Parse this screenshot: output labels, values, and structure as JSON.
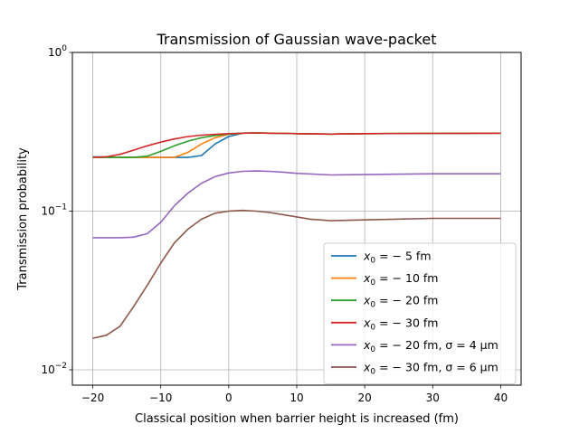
{
  "chart_data": {
    "type": "line",
    "title": "Transmission of Gaussian wave-packet",
    "xlabel": "Classical position when barrier height is increased (fm)",
    "ylabel": "Transmission probability",
    "xlim": [
      -23,
      43
    ],
    "ylim": [
      0.008,
      1.0
    ],
    "yscale": "log",
    "grid": true,
    "legend_position": "lower-right",
    "x_ticks": [
      -20,
      -10,
      0,
      10,
      20,
      30,
      40
    ],
    "x_tick_labels": [
      "−20",
      "−10",
      "0",
      "10",
      "20",
      "30",
      "40"
    ],
    "y_ticks": [
      {
        "value": 0.01,
        "base": "10",
        "exp": "−2"
      },
      {
        "value": 0.1,
        "base": "10",
        "exp": "−1"
      },
      {
        "value": 1,
        "base": "10",
        "exp": "0"
      }
    ],
    "series": [
      {
        "name": "x0 = −5 fm",
        "label_pre": "x",
        "label_sub": "0",
        "label_post": " = − 5 fm",
        "color": "#1f77b4",
        "x": [
          -20,
          -18,
          -16,
          -14,
          -12,
          -10,
          -8,
          -6,
          -4,
          -2,
          0,
          2,
          4,
          6,
          8,
          10,
          15,
          20,
          30,
          40
        ],
        "y": [
          0.22,
          0.219,
          0.218,
          0.218,
          0.218,
          0.218,
          0.218,
          0.218,
          0.224,
          0.265,
          0.295,
          0.31,
          0.311,
          0.31,
          0.309,
          0.308,
          0.306,
          0.308,
          0.309,
          0.31
        ]
      },
      {
        "name": "x0 = −10 fm",
        "label_pre": "x",
        "label_sub": "0",
        "label_post": " = − 10 fm",
        "color": "#ff7f0e",
        "x": [
          -20,
          -18,
          -16,
          -14,
          -12,
          -10,
          -8,
          -6,
          -4,
          -2,
          0,
          2,
          4,
          6,
          8,
          10,
          15,
          20,
          30,
          40
        ],
        "y": [
          0.218,
          0.218,
          0.218,
          0.218,
          0.218,
          0.218,
          0.218,
          0.235,
          0.265,
          0.29,
          0.305,
          0.31,
          0.311,
          0.31,
          0.309,
          0.308,
          0.306,
          0.308,
          0.309,
          0.31
        ]
      },
      {
        "name": "x0 = −20 fm",
        "label_pre": "x",
        "label_sub": "0",
        "label_post": " = − 20 fm",
        "color": "#2ca02c",
        "x": [
          -20,
          -18,
          -16,
          -14,
          -12,
          -10,
          -8,
          -6,
          -4,
          -2,
          0,
          2,
          4,
          6,
          8,
          10,
          15,
          20,
          30,
          40
        ],
        "y": [
          0.218,
          0.218,
          0.218,
          0.218,
          0.222,
          0.238,
          0.258,
          0.276,
          0.29,
          0.3,
          0.306,
          0.31,
          0.311,
          0.31,
          0.309,
          0.308,
          0.306,
          0.308,
          0.309,
          0.31
        ]
      },
      {
        "name": "x0 = −30 fm",
        "label_pre": "x",
        "label_sub": "0",
        "label_post": " = − 30 fm",
        "color": "#d62728",
        "x": [
          -20,
          -18,
          -16,
          -14,
          -12,
          -10,
          -8,
          -6,
          -4,
          -2,
          0,
          2,
          4,
          6,
          8,
          10,
          15,
          20,
          30,
          40
        ],
        "y": [
          0.218,
          0.22,
          0.228,
          0.242,
          0.258,
          0.272,
          0.285,
          0.295,
          0.301,
          0.305,
          0.308,
          0.31,
          0.311,
          0.31,
          0.309,
          0.308,
          0.306,
          0.308,
          0.309,
          0.31
        ]
      },
      {
        "name": "x0 = −20 fm, σ = 4 μm",
        "label_pre": "x",
        "label_sub": "0",
        "label_post": " = − 20 fm, σ = 4 μm",
        "color": "#9467bd",
        "x": [
          -20,
          -18,
          -16,
          -14,
          -12,
          -10,
          -8,
          -6,
          -4,
          -2,
          0,
          2,
          4,
          6,
          8,
          10,
          15,
          20,
          30,
          40
        ],
        "y": [
          0.068,
          0.068,
          0.068,
          0.0685,
          0.072,
          0.085,
          0.108,
          0.13,
          0.15,
          0.165,
          0.174,
          0.178,
          0.179,
          0.178,
          0.176,
          0.173,
          0.169,
          0.17,
          0.172,
          0.172
        ]
      },
      {
        "name": "x0 = −30 fm, σ = 6 μm",
        "label_pre": "x",
        "label_sub": "0",
        "label_post": " = − 30 fm, σ = 6 μm",
        "color": "#8c564b",
        "x": [
          -20,
          -18,
          -16,
          -14,
          -12,
          -10,
          -8,
          -6,
          -4,
          -2,
          0,
          2,
          4,
          6,
          8,
          10,
          12,
          15,
          20,
          30,
          40
        ],
        "y": [
          0.0158,
          0.0165,
          0.0188,
          0.025,
          0.034,
          0.047,
          0.063,
          0.077,
          0.089,
          0.097,
          0.1,
          0.101,
          0.1,
          0.098,
          0.095,
          0.092,
          0.089,
          0.087,
          0.088,
          0.09,
          0.09
        ]
      }
    ]
  }
}
